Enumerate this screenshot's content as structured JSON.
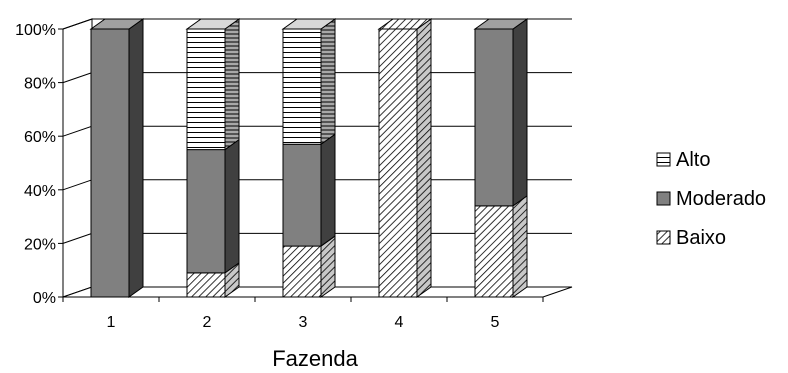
{
  "chart_data": {
    "type": "bar",
    "stacked": true,
    "percent": true,
    "style": "3d-column",
    "xlabel": "Fazenda",
    "ylabel": "",
    "categories": [
      "1",
      "2",
      "3",
      "4",
      "5"
    ],
    "y_ticks": [
      "0%",
      "20%",
      "40%",
      "60%",
      "80%",
      "100%"
    ],
    "ylim": [
      0,
      100
    ],
    "grid": true,
    "legend_position": "right",
    "series": [
      {
        "name": "Baixo",
        "pattern": "diagonal-hatch",
        "values": [
          0,
          9,
          19,
          100,
          34
        ]
      },
      {
        "name": "Moderado",
        "pattern": "solid-gray",
        "color": "#808080",
        "values": [
          100,
          46,
          38,
          0,
          66
        ]
      },
      {
        "name": "Alto",
        "pattern": "horizontal-lines",
        "values": [
          0,
          45,
          43,
          0,
          0
        ]
      }
    ],
    "legend": [
      "Alto",
      "Moderado",
      "Baixo"
    ]
  }
}
